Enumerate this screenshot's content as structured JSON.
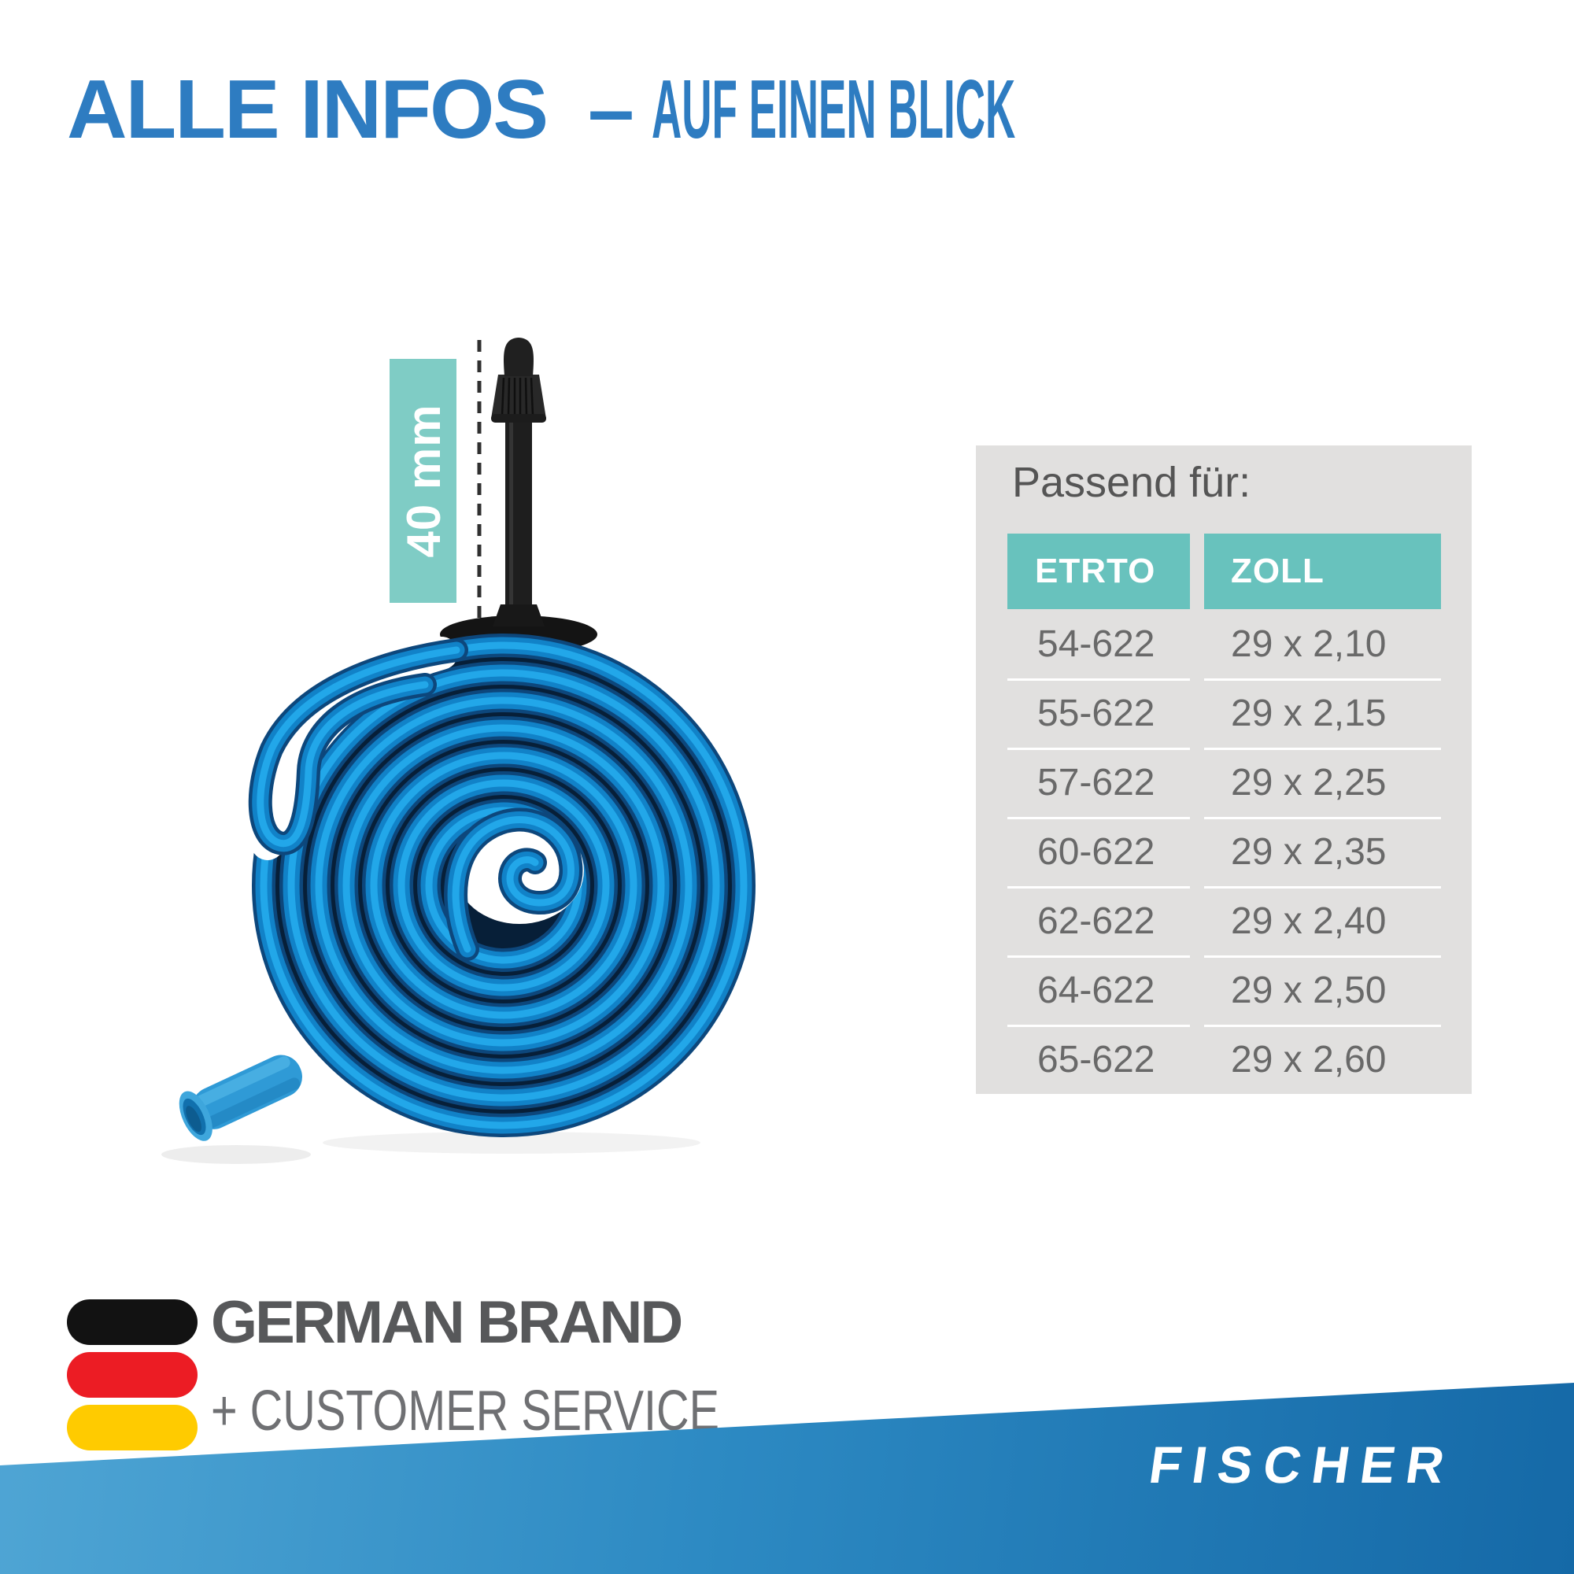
{
  "title": {
    "highlight": "ALLE INFOS",
    "dash": "–",
    "rest": "AUF EINEN BLICK"
  },
  "diagram": {
    "valve_length": "40 mm"
  },
  "fit_table": {
    "caption": "Passend für:",
    "columns": [
      "ETRTO",
      "ZOLL"
    ],
    "rows": [
      [
        "54-622",
        "29 x 2,10"
      ],
      [
        "55-622",
        "29 x 2,15"
      ],
      [
        "57-622",
        "29 x 2,25"
      ],
      [
        "60-622",
        "29 x 2,35"
      ],
      [
        "62-622",
        "29 x 2,40"
      ],
      [
        "64-622",
        "29 x 2,50"
      ],
      [
        "65-622",
        "29 x 2,60"
      ]
    ]
  },
  "badge": {
    "line1": "GERMAN BRAND",
    "line2": "+ CUSTOMER SERVICE"
  },
  "brand": {
    "name": "FISCHER"
  },
  "colors": {
    "title_blue": "#2e7cc1",
    "teal_label": "#7fccc5",
    "teal_header": "#68c2bd",
    "panel_gray": "#e1e0df",
    "table_text": "#696969",
    "caption_text": "#555555",
    "badge_dark": "#57585a",
    "badge_light": "#6f7073",
    "flag_black": "#121212",
    "flag_red": "#ec1c24",
    "flag_gold": "#ffcb00",
    "band_light": "#4fa5d4",
    "band_mid": "#2d8ac3",
    "band_dark": "#1569a7",
    "tube_hi": "#22a7e9",
    "tube_mid": "#1182c8",
    "tube_dark": "#0d477c",
    "coil_navy": "#071f38",
    "valve_black": "#1e1e1e",
    "cap_blue": "#2f9ad6"
  }
}
